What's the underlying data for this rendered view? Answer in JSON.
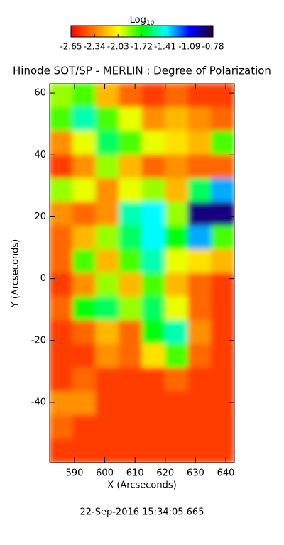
{
  "chart_data": {
    "type": "heatmap",
    "title": "Hinode SOT/SP - MERLIN : Degree of Polarization",
    "colorbar_title": "Log",
    "colorbar_title_subscript": "10",
    "clim": [
      -2.65,
      -0.78
    ],
    "colorbar_ticks": [
      -2.65,
      -2.34,
      -2.03,
      -1.72,
      -1.41,
      -1.09,
      -0.78
    ],
    "colormap": [
      "#ff0000",
      "#ff8000",
      "#ffff00",
      "#00ff00",
      "#00ffff",
      "#0000ff",
      "#200030"
    ],
    "x_label": "X (Arcseconds)",
    "y_label": "Y (Arcseconds)",
    "xlim": [
      581.8,
      642.8
    ],
    "ylim": [
      -59.5,
      63
    ],
    "xticks": [
      590,
      600,
      610,
      620,
      630,
      640
    ],
    "yticks": [
      -40,
      -20,
      0,
      20,
      40,
      60
    ],
    "z": [
      [
        -1.9,
        -1.8,
        -2.2,
        -2.4,
        -2.5,
        -2.4,
        -2.5,
        -2.5
      ],
      [
        -1.8,
        -1.5,
        -1.8,
        -2.0,
        -2.3,
        -2.2,
        -2.3,
        -2.4
      ],
      [
        -2.3,
        -2.0,
        -1.6,
        -1.8,
        -2.0,
        -2.1,
        -2.2,
        -1.8
      ],
      [
        -2.5,
        -2.3,
        -1.9,
        -2.2,
        -2.4,
        -2.3,
        -2.4,
        -2.4
      ],
      [
        -1.9,
        -2.0,
        -2.3,
        -2.0,
        -1.9,
        -2.2,
        -1.6,
        -1.3
      ],
      [
        -2.3,
        -2.4,
        -2.3,
        -1.5,
        -1.4,
        -1.9,
        -0.9,
        -0.9
      ],
      [
        -2.4,
        -2.2,
        -1.9,
        -1.6,
        -1.4,
        -1.7,
        -1.3,
        -1.8
      ],
      [
        -2.4,
        -1.8,
        -2.2,
        -1.8,
        -1.5,
        -2.0,
        -2.1,
        -2.2
      ],
      [
        -2.5,
        -2.3,
        -1.9,
        -2.2,
        -1.8,
        -2.2,
        -2.4,
        -2.5
      ],
      [
        -2.4,
        -1.7,
        -1.6,
        -1.9,
        -1.6,
        -2.0,
        -2.4,
        -2.5
      ],
      [
        -2.5,
        -2.4,
        -2.2,
        -2.4,
        -1.7,
        -1.5,
        -2.3,
        -2.5
      ],
      [
        -2.5,
        -2.5,
        -2.3,
        -2.4,
        -2.1,
        -1.8,
        -2.4,
        -2.5
      ],
      [
        -2.5,
        -2.4,
        -2.5,
        -2.5,
        -2.5,
        -2.4,
        -2.5,
        -2.5
      ],
      [
        -2.3,
        -2.3,
        -2.5,
        -2.5,
        -2.5,
        -2.5,
        -2.5,
        -2.5
      ],
      [
        -2.4,
        -2.5,
        -2.5,
        -2.5,
        -2.5,
        -2.5,
        -2.5,
        -2.5
      ],
      [
        -2.5,
        -2.5,
        -2.5,
        -2.5,
        -2.5,
        -2.5,
        -2.5,
        -2.5
      ]
    ],
    "footer": "22-Sep-2016 15:34:05.665"
  }
}
